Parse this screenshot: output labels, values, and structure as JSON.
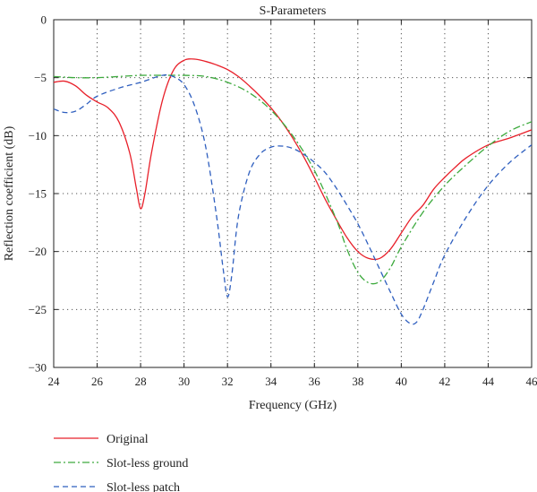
{
  "chart_data": {
    "type": "line",
    "title": "S-Parameters",
    "xlabel": "Frequency (GHz)",
    "ylabel": "Reflection coefficient (dB)",
    "xlim": [
      24,
      46
    ],
    "ylim": [
      -30,
      0
    ],
    "xticks": [
      24,
      26,
      28,
      30,
      32,
      34,
      36,
      38,
      40,
      42,
      44,
      46
    ],
    "yticks": [
      0,
      -5,
      -10,
      -15,
      -20,
      -25,
      -30
    ],
    "xtick_labels": [
      "24",
      "26",
      "28",
      "30",
      "32",
      "34",
      "36",
      "38",
      "40",
      "42",
      "44",
      "46"
    ],
    "ytick_labels": [
      "0",
      "−5",
      "−10",
      "−15",
      "−20",
      "−25",
      "−30"
    ],
    "grid": true,
    "legend_position": "below",
    "series": [
      {
        "name": "Original",
        "color": "#e8202a",
        "dash": "solid",
        "x": [
          24,
          24.5,
          25,
          25.5,
          26,
          26.5,
          27,
          27.5,
          27.8,
          28,
          28.2,
          28.5,
          29,
          29.5,
          30,
          30.5,
          31,
          31.5,
          32,
          32.5,
          33,
          33.5,
          34,
          34.5,
          35,
          35.5,
          36,
          36.5,
          37,
          37.5,
          38,
          38.5,
          39,
          39.5,
          40,
          40.5,
          41,
          41.5,
          42,
          42.5,
          43,
          44,
          45,
          46
        ],
        "y": [
          -5.4,
          -5.3,
          -5.7,
          -6.5,
          -7.1,
          -7.6,
          -8.8,
          -11.5,
          -14.5,
          -16.3,
          -15.0,
          -11.5,
          -7.0,
          -4.4,
          -3.5,
          -3.4,
          -3.6,
          -3.9,
          -4.3,
          -4.9,
          -5.7,
          -6.6,
          -7.6,
          -8.8,
          -10.2,
          -11.8,
          -13.6,
          -15.5,
          -17.2,
          -18.8,
          -20.0,
          -20.6,
          -20.6,
          -19.8,
          -18.4,
          -17.0,
          -16.0,
          -14.6,
          -13.6,
          -12.7,
          -11.9,
          -10.8,
          -10.2,
          -9.5
        ]
      },
      {
        "name": "Slot-less ground",
        "color": "#3daa3d",
        "dash": "dashdot",
        "x": [
          24,
          25,
          26,
          27,
          28,
          29,
          30,
          31,
          32,
          33,
          34,
          35,
          36,
          37,
          37.5,
          38,
          38.5,
          39,
          39.5,
          40,
          41,
          42,
          43,
          44,
          45,
          46
        ],
        "y": [
          -4.9,
          -5.0,
          -5.0,
          -4.9,
          -4.8,
          -4.8,
          -4.8,
          -4.9,
          -5.4,
          -6.3,
          -7.8,
          -10.0,
          -13.0,
          -17.2,
          -19.8,
          -21.8,
          -22.7,
          -22.6,
          -21.4,
          -19.6,
          -16.6,
          -14.3,
          -12.5,
          -10.9,
          -9.6,
          -8.8
        ]
      },
      {
        "name": "Slot-less patch",
        "color": "#2f5fbf",
        "dash": "dashed",
        "x": [
          24,
          24.5,
          25,
          25.5,
          26,
          27,
          28,
          29,
          29.5,
          30,
          30.5,
          31,
          31.5,
          31.8,
          32,
          32.2,
          32.5,
          33,
          33.5,
          34,
          34.5,
          35,
          35.5,
          36,
          36.5,
          37,
          37.5,
          38,
          38.5,
          39,
          39.5,
          40,
          40.4,
          40.7,
          41,
          41.5,
          42,
          43,
          44,
          45,
          46
        ],
        "y": [
          -7.7,
          -8.0,
          -7.9,
          -7.3,
          -6.6,
          -5.9,
          -5.4,
          -4.8,
          -4.9,
          -5.6,
          -7.5,
          -11.0,
          -17.0,
          -21.5,
          -23.9,
          -22.0,
          -17.0,
          -13.2,
          -11.6,
          -11.0,
          -10.9,
          -11.1,
          -11.6,
          -12.3,
          -13.2,
          -14.5,
          -16.0,
          -17.6,
          -19.5,
          -21.5,
          -23.5,
          -25.4,
          -26.2,
          -26.1,
          -25.0,
          -22.6,
          -20.3,
          -17.0,
          -14.3,
          -12.3,
          -10.8
        ]
      }
    ]
  }
}
